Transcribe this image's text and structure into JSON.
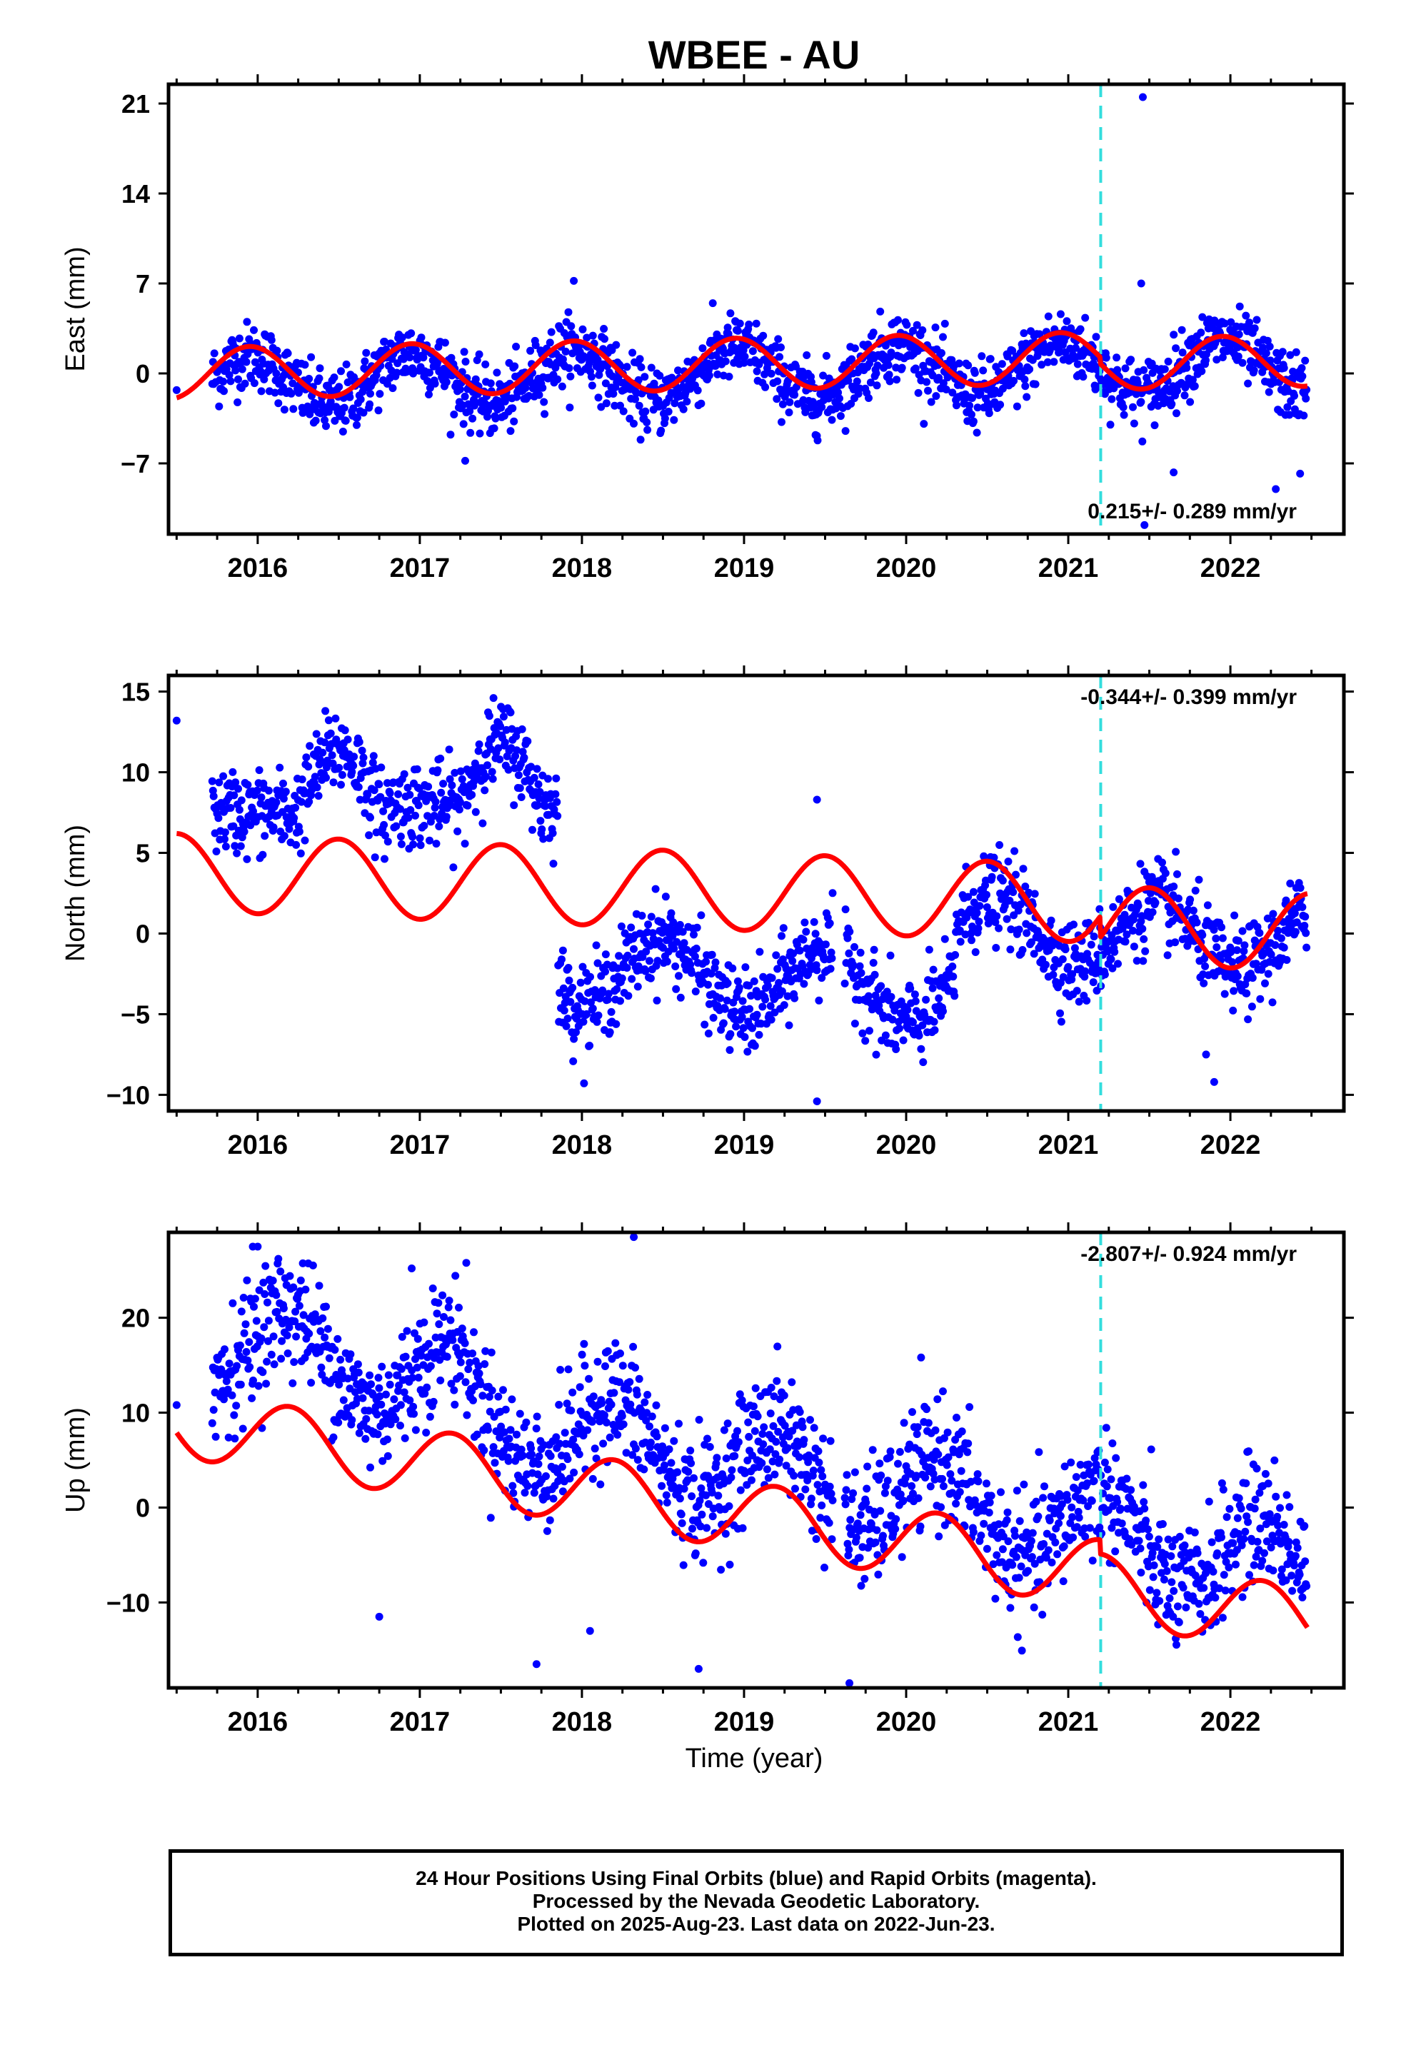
{
  "title": "WBEE - AU",
  "xlabel": "Time (year)",
  "colors": {
    "data": "#0000ff",
    "model": "#ff0000",
    "offset_line": "#33dddd",
    "frame": "#000000"
  },
  "caption": {
    "line1": "24 Hour Positions Using Final Orbits (blue) and Rapid Orbits (magenta).",
    "line2": "Processed by the Nevada Geodetic Laboratory.",
    "line3": "Plotted on 2025-Aug-23. Last data on 2022-Jun-23."
  },
  "chart_data": [
    {
      "type": "scatter",
      "component": "east",
      "ylabel": "East (mm)",
      "xlim": [
        2015.45,
        2022.7
      ],
      "ylim": [
        -12.5,
        22.5
      ],
      "yticks": [
        -7,
        0,
        7,
        14,
        21
      ],
      "xticks": [
        2016,
        2017,
        2018,
        2019,
        2020,
        2021,
        2022
      ],
      "rate_label": "0.215+/- 0.289 mm/yr",
      "offset_epoch": 2021.2,
      "model": {
        "start": 2015.5,
        "end": 2022.48,
        "y0": 0.0,
        "rate": 0.215,
        "amp": 2.0,
        "phase_peak": 0.95
      },
      "series_shape": {
        "noise": 1.3,
        "amp": 2.0,
        "rate": 0.2,
        "mean": 0.0
      },
      "outliers": [
        [
          2015.5,
          -1.3
        ],
        [
          2021.46,
          21.5
        ],
        [
          2021.47,
          -11.8
        ],
        [
          2021.45,
          7.0
        ],
        [
          2017.95,
          7.2
        ],
        [
          2017.28,
          -6.8
        ],
        [
          2022.28,
          -9.0
        ],
        [
          2022.43,
          -7.8
        ],
        [
          2021.65,
          -7.7
        ]
      ]
    },
    {
      "type": "scatter",
      "component": "north",
      "ylabel": "North (mm)",
      "xlim": [
        2015.45,
        2022.7
      ],
      "ylim": [
        -11,
        16
      ],
      "yticks": [
        -10,
        -5,
        0,
        5,
        10,
        15
      ],
      "xticks": [
        2016,
        2017,
        2018,
        2019,
        2020,
        2021,
        2022
      ],
      "rate_label": "-0.344+/- 0.399 mm/yr",
      "offset_epoch": 2021.2,
      "model": {
        "start": 2015.5,
        "end": 2022.48,
        "y0": 3.8,
        "rate": -0.344,
        "amp": 2.4,
        "phase_peak": 0.5
      },
      "outliers": [
        [
          2015.5,
          13.2
        ],
        [
          2019.45,
          8.3
        ],
        [
          2019.45,
          -10.4
        ],
        [
          2021.9,
          -9.2
        ],
        [
          2021.85,
          -7.5
        ]
      ]
    },
    {
      "type": "scatter",
      "component": "up",
      "ylabel": "Up (mm)",
      "xlim": [
        2015.45,
        2022.7
      ],
      "ylim": [
        -19,
        29
      ],
      "yticks": [
        -10,
        0,
        10,
        20
      ],
      "xticks": [
        2016,
        2017,
        2018,
        2019,
        2020,
        2021,
        2022
      ],
      "rate_label": "-2.807+/- 0.924 mm/yr",
      "offset_epoch": 2021.2,
      "model": {
        "start": 2015.5,
        "end": 2022.48,
        "y0": 9.0,
        "rate": -2.807,
        "amp": 3.6,
        "phase_peak": 0.2
      },
      "outliers": [
        [
          2015.5,
          10.8
        ],
        [
          2015.97,
          27.5
        ],
        [
          2016.0,
          27.5
        ],
        [
          2018.32,
          28.5
        ],
        [
          2019.65,
          -18.5
        ],
        [
          2018.72,
          -17.0
        ],
        [
          2017.72,
          -16.5
        ],
        [
          2016.75,
          -11.5
        ],
        [
          2018.05,
          -13.0
        ],
        [
          2016.95,
          25.2
        ]
      ]
    }
  ]
}
